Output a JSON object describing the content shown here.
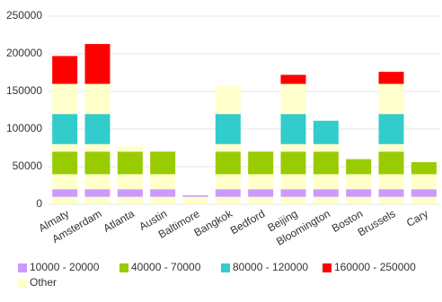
{
  "chart_data": {
    "type": "banded-bar",
    "categories": [
      "Almaty",
      "Amsterdam",
      "Atlanta",
      "Austin",
      "Baltimore",
      "Bangkok",
      "Bedford",
      "Beijing",
      "Bloomington",
      "Boston",
      "Brussels",
      "Cary"
    ],
    "values": [
      197000,
      213000,
      77000,
      70000,
      12000,
      157000,
      70000,
      172000,
      111000,
      60000,
      176000,
      56000
    ],
    "ranges": [
      {
        "label": "10000 - 20000",
        "from": 10000,
        "to": 20000,
        "color": "#cc99ff"
      },
      {
        "label": "40000 - 70000",
        "from": 40000,
        "to": 70000,
        "color": "#99cc00"
      },
      {
        "label": "80000 - 120000",
        "from": 80000,
        "to": 120000,
        "color": "#33cccc"
      },
      {
        "label": "160000 - 250000",
        "from": 160000,
        "to": 250000,
        "color": "#ff0000"
      }
    ],
    "other": {
      "label": "Other",
      "color": "#ffffcc"
    },
    "ylim": [
      0,
      250000
    ],
    "yticks": [
      0,
      50000,
      100000,
      150000,
      200000,
      250000
    ],
    "grid": true
  }
}
